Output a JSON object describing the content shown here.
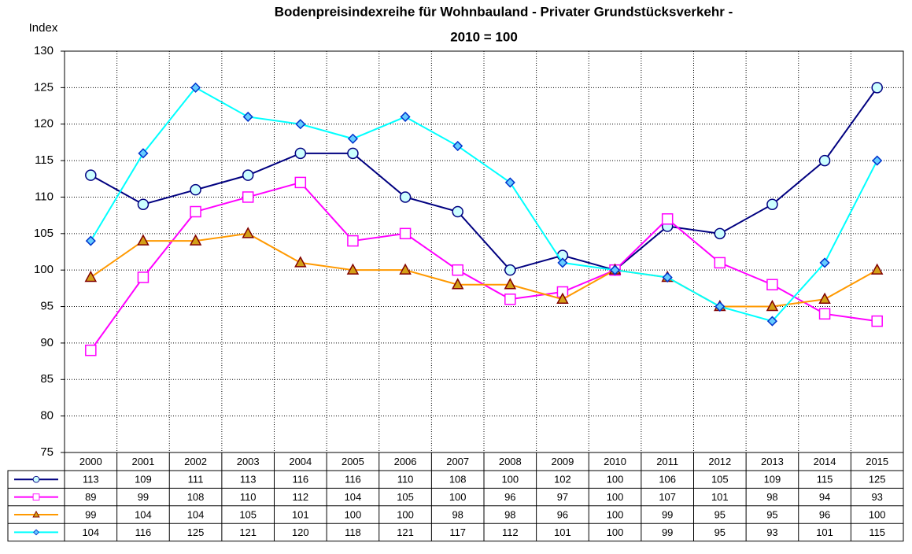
{
  "chart_data": {
    "type": "line",
    "title": [
      "Bodenpreisindexreihe für Wohnbauland - Privater Grundstücksverkehr -",
      "2010 = 100"
    ],
    "y_label": "Index",
    "categories": [
      "2000",
      "2001",
      "2002",
      "2003",
      "2004",
      "2005",
      "2006",
      "2007",
      "2008",
      "2009",
      "2010",
      "2011",
      "2012",
      "2013",
      "2014",
      "2015"
    ],
    "series": [
      {
        "color": "#000080",
        "marker": "circle",
        "marker_fill": "#ccffff",
        "values": [
          113,
          109,
          111,
          113,
          116,
          116,
          110,
          108,
          100,
          102,
          100,
          106,
          105,
          109,
          115,
          125
        ]
      },
      {
        "color": "#ff00ff",
        "marker": "square",
        "marker_fill": "#ffffff",
        "values": [
          89,
          99,
          108,
          110,
          112,
          104,
          105,
          100,
          96,
          97,
          100,
          107,
          101,
          98,
          94,
          93
        ]
      },
      {
        "color": "#ff9900",
        "marker": "triangle",
        "marker_fill": "#d4a017",
        "values": [
          99,
          104,
          104,
          105,
          101,
          100,
          100,
          98,
          98,
          96,
          100,
          99,
          95,
          95,
          96,
          100
        ]
      },
      {
        "color": "#00ffff",
        "marker": "diamond",
        "marker_fill": "#66ccff",
        "values": [
          104,
          116,
          125,
          121,
          120,
          118,
          121,
          117,
          112,
          101,
          100,
          99,
          95,
          93,
          101,
          115
        ]
      }
    ],
    "ylim": [
      75,
      130
    ],
    "yticks": [
      75,
      80,
      85,
      90,
      95,
      100,
      105,
      110,
      115,
      120,
      125,
      130
    ],
    "grid": true
  }
}
